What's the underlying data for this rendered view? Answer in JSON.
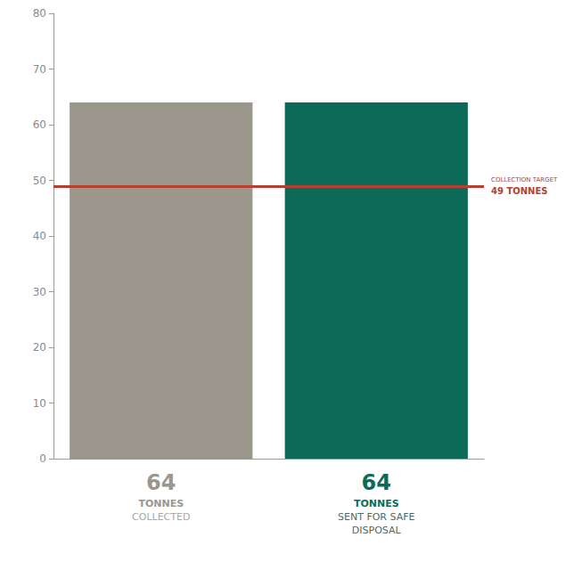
{
  "chart_data": {
    "type": "bar",
    "categories": [
      "COLLECTED",
      "SENT FOR SAFE DISPOSAL"
    ],
    "values": [
      64,
      64
    ],
    "value_labels": [
      "64 TONNES",
      "64 TONNES"
    ],
    "data_labels": true,
    "colors": [
      "#9c978c",
      "#0b6b58"
    ],
    "ylim": [
      0,
      80
    ],
    "yticks": [
      0,
      10,
      20,
      30,
      40,
      50,
      60,
      70,
      80
    ],
    "grid": false,
    "annotations": [
      {
        "text": "COLLECTION TARGET",
        "value": 49,
        "label": "49 TONNES",
        "color": "#b5402f"
      }
    ]
  }
}
